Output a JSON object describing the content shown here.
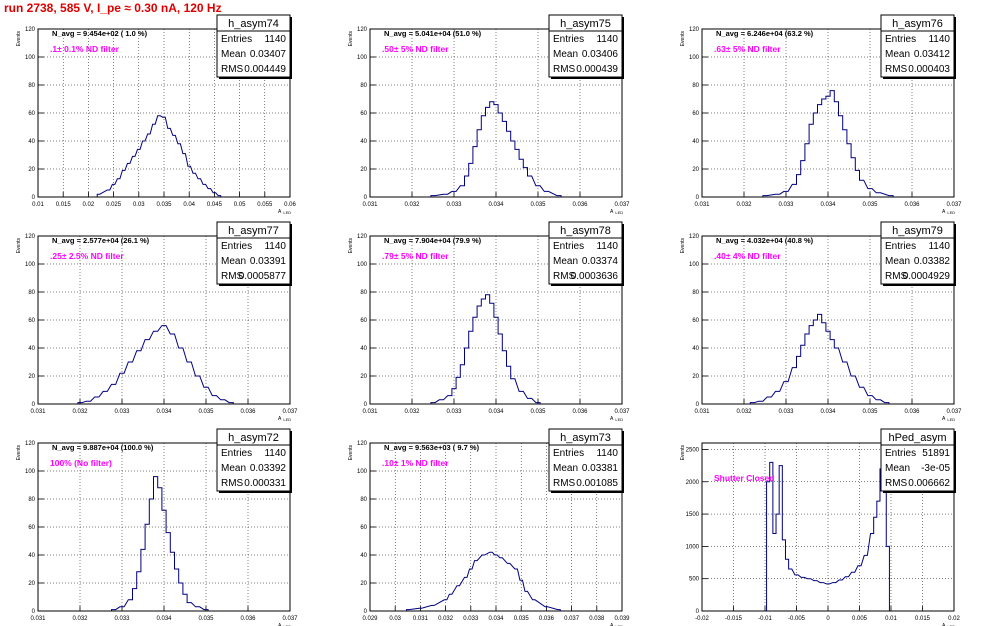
{
  "header": {
    "title": "run 2738,   585 V, I_pe ≈ 0.30 nA, 120 Hz"
  },
  "axes": {
    "y_label": "Events",
    "x_label": "A",
    "x_sub": "LED"
  },
  "colors": {
    "histogram": "#000080",
    "title": "#e00000",
    "filter_text": "#ff00ff"
  },
  "chart_data": [
    {
      "type": "bar",
      "name": "h_asym74",
      "n_avg": "N_avg = 9.454e+02 ( 1.0 %)",
      "filter": ".1± 0.1% ND filter",
      "stats": {
        "entries_label": "Entries",
        "entries": "1140",
        "mean_label": "Mean",
        "mean": "0.03407",
        "rms_label": "RMS",
        "rms": "0.004449"
      },
      "xlim": [
        0.01,
        0.06
      ],
      "ylim": [
        0,
        120
      ],
      "xticks": [
        "0.01",
        "0.015",
        "0.02",
        "0.025",
        "0.03",
        "0.035",
        "0.04",
        "0.045",
        "0.05",
        "0.055",
        "0.06"
      ],
      "yticks": [
        "0",
        "20",
        "40",
        "60",
        "80",
        "100",
        "120"
      ],
      "x": [
        0.022,
        0.024,
        0.025,
        0.026,
        0.027,
        0.028,
        0.029,
        0.03,
        0.031,
        0.032,
        0.033,
        0.034,
        0.035,
        0.036,
        0.037,
        0.038,
        0.039,
        0.04,
        0.041,
        0.042,
        0.043,
        0.044,
        0.045,
        0.046
      ],
      "values": [
        2,
        5,
        9,
        13,
        19,
        24,
        29,
        34,
        40,
        45,
        52,
        58,
        57,
        49,
        44,
        38,
        31,
        22,
        17,
        13,
        9,
        6,
        3,
        1
      ]
    },
    {
      "type": "bar",
      "name": "h_asym75",
      "n_avg": "N_avg = 5.041e+04 (51.0 %)",
      "filter": ".50± 5% ND filter",
      "stats": {
        "entries_label": "Entries",
        "entries": "1140",
        "mean_label": "Mean",
        "mean": "0.03406",
        "rms_label": "RMS",
        "rms": "0.000439"
      },
      "xlim": [
        0.031,
        0.037
      ],
      "ylim": [
        0,
        120
      ],
      "xticks": [
        "0.031",
        "0.032",
        "0.033",
        "0.034",
        "0.035",
        "0.036",
        "0.037"
      ],
      "yticks": [
        "0",
        "20",
        "40",
        "60",
        "80",
        "100",
        "120"
      ],
      "x": [
        0.0325,
        0.0328,
        0.033,
        0.0332,
        0.0333,
        0.0334,
        0.0335,
        0.0336,
        0.0337,
        0.0338,
        0.0339,
        0.034,
        0.0341,
        0.0342,
        0.0343,
        0.0344,
        0.0345,
        0.0346,
        0.0347,
        0.0348,
        0.035,
        0.0352,
        0.0355
      ],
      "values": [
        1,
        2,
        4,
        8,
        15,
        24,
        36,
        48,
        58,
        64,
        68,
        66,
        60,
        54,
        47,
        40,
        34,
        27,
        21,
        15,
        8,
        4,
        1
      ]
    },
    {
      "type": "bar",
      "name": "h_asym76",
      "n_avg": "N_avg = 6.246e+04 (63.2 %)",
      "filter": ".63± 5% ND filter",
      "stats": {
        "entries_label": "Entries",
        "entries": "1140",
        "mean_label": "Mean",
        "mean": "0.03412",
        "rms_label": "RMS",
        "rms": "0.000403"
      },
      "xlim": [
        0.031,
        0.037
      ],
      "ylim": [
        0,
        120
      ],
      "xticks": [
        "0.031",
        "0.032",
        "0.033",
        "0.034",
        "0.035",
        "0.036",
        "0.037"
      ],
      "yticks": [
        "0",
        "20",
        "40",
        "60",
        "80",
        "100",
        "120"
      ],
      "x": [
        0.0325,
        0.0328,
        0.033,
        0.0332,
        0.0333,
        0.0334,
        0.0335,
        0.0336,
        0.0337,
        0.0338,
        0.0339,
        0.034,
        0.0341,
        0.0342,
        0.0343,
        0.0344,
        0.0345,
        0.0346,
        0.0347,
        0.0348,
        0.035,
        0.0352,
        0.0355
      ],
      "values": [
        1,
        2,
        4,
        9,
        16,
        26,
        38,
        52,
        60,
        66,
        70,
        72,
        76,
        68,
        58,
        48,
        38,
        28,
        19,
        12,
        6,
        3,
        1
      ]
    },
    {
      "type": "bar",
      "name": "h_asym77",
      "n_avg": "N_avg = 2.577e+04 (26.1 %)",
      "filter": ".25± 2.5% ND filter",
      "stats": {
        "entries_label": "Entries",
        "entries": "1140",
        "mean_label": "Mean",
        "mean": "0.03391",
        "rms_label": "RMS",
        "rms": "0.0005877"
      },
      "xlim": [
        0.031,
        0.037
      ],
      "ylim": [
        0,
        120
      ],
      "xticks": [
        "0.031",
        "0.032",
        "0.033",
        "0.034",
        "0.035",
        "0.036",
        "0.037"
      ],
      "yticks": [
        "0",
        "20",
        "40",
        "60",
        "80",
        "100",
        "120"
      ],
      "x": [
        0.032,
        0.0322,
        0.0324,
        0.0326,
        0.0328,
        0.033,
        0.0332,
        0.0334,
        0.0336,
        0.0338,
        0.034,
        0.0342,
        0.0344,
        0.0346,
        0.0348,
        0.035,
        0.0352,
        0.0354,
        0.0356
      ],
      "values": [
        1,
        2,
        5,
        9,
        14,
        22,
        30,
        38,
        46,
        52,
        56,
        50,
        40,
        30,
        20,
        12,
        6,
        3,
        1
      ]
    },
    {
      "type": "bar",
      "name": "h_asym78",
      "n_avg": "N_avg = 7.904e+04 (79.9 %)",
      "filter": ".79± 5% ND filter",
      "stats": {
        "entries_label": "Entries",
        "entries": "1140",
        "mean_label": "Mean",
        "mean": "0.03374",
        "rms_label": "RMS",
        "rms": "0.0003636"
      },
      "xlim": [
        0.031,
        0.037
      ],
      "ylim": [
        0,
        120
      ],
      "xticks": [
        "0.031",
        "0.032",
        "0.033",
        "0.034",
        "0.035",
        "0.036",
        "0.037"
      ],
      "yticks": [
        "0",
        "20",
        "40",
        "60",
        "80",
        "100",
        "120"
      ],
      "x": [
        0.0325,
        0.0327,
        0.0329,
        0.033,
        0.0331,
        0.0332,
        0.0333,
        0.0334,
        0.0335,
        0.0336,
        0.0337,
        0.0338,
        0.0339,
        0.034,
        0.0341,
        0.0342,
        0.0343,
        0.0344,
        0.0346,
        0.0348,
        0.035
      ],
      "values": [
        1,
        3,
        6,
        11,
        19,
        28,
        40,
        52,
        62,
        70,
        75,
        78,
        72,
        62,
        50,
        38,
        27,
        18,
        9,
        4,
        1
      ]
    },
    {
      "type": "bar",
      "name": "h_asym79",
      "n_avg": "N_avg = 4.032e+04 (40.8 %)",
      "filter": ".40± 4% ND filter",
      "stats": {
        "entries_label": "Entries",
        "entries": "1140",
        "mean_label": "Mean",
        "mean": "0.03382",
        "rms_label": "RMS",
        "rms": "0.0004929"
      },
      "xlim": [
        0.031,
        0.037
      ],
      "ylim": [
        0,
        120
      ],
      "xticks": [
        "0.031",
        "0.032",
        "0.033",
        "0.034",
        "0.035",
        "0.036",
        "0.037"
      ],
      "yticks": [
        "0",
        "20",
        "40",
        "60",
        "80",
        "100",
        "120"
      ],
      "x": [
        0.0322,
        0.0324,
        0.0326,
        0.0328,
        0.033,
        0.0332,
        0.0333,
        0.0334,
        0.0335,
        0.0336,
        0.0337,
        0.0338,
        0.0339,
        0.034,
        0.0341,
        0.0342,
        0.0344,
        0.0346,
        0.0348,
        0.035,
        0.0352,
        0.0354
      ],
      "values": [
        1,
        2,
        5,
        9,
        16,
        26,
        34,
        42,
        50,
        56,
        60,
        64,
        58,
        52,
        46,
        40,
        30,
        20,
        12,
        6,
        3,
        1
      ]
    },
    {
      "type": "bar",
      "name": "h_asym72",
      "n_avg": "N_avg = 9.887e+04 (100.0 %)",
      "filter": "100% (No filter)",
      "stats": {
        "entries_label": "Entries",
        "entries": "1140",
        "mean_label": "Mean",
        "mean": "0.03392",
        "rms_label": "RMS",
        "rms": "0.000331"
      },
      "xlim": [
        0.031,
        0.037
      ],
      "ylim": [
        0,
        120
      ],
      "xticks": [
        "0.031",
        "0.032",
        "0.033",
        "0.034",
        "0.035",
        "0.036",
        "0.037"
      ],
      "yticks": [
        "0",
        "20",
        "40",
        "60",
        "80",
        "100",
        "120"
      ],
      "x": [
        0.0328,
        0.033,
        0.0332,
        0.0333,
        0.0334,
        0.0335,
        0.0336,
        0.0337,
        0.0338,
        0.0339,
        0.034,
        0.0341,
        0.0342,
        0.0343,
        0.0344,
        0.0345,
        0.0346,
        0.0348,
        0.035
      ],
      "values": [
        1,
        3,
        8,
        16,
        28,
        44,
        62,
        80,
        96,
        88,
        72,
        56,
        42,
        30,
        20,
        12,
        6,
        3,
        1
      ]
    },
    {
      "type": "bar",
      "name": "h_asym73",
      "n_avg": "N_avg = 9.563e+03 ( 9.7 %)",
      "filter": ".10± 1% ND filter",
      "stats": {
        "entries_label": "Entries",
        "entries": "1140",
        "mean_label": "Mean",
        "mean": "0.03381",
        "rms_label": "RMS",
        "rms": "0.001085"
      },
      "xlim": [
        0.029,
        0.039
      ],
      "ylim": [
        0,
        120
      ],
      "xticks": [
        "0.029",
        "0.03",
        "0.031",
        "0.032",
        "0.033",
        "0.034",
        "0.035",
        "0.036",
        "0.037",
        "0.038",
        "0.039"
      ],
      "yticks": [
        "0",
        "20",
        "40",
        "60",
        "80",
        "100",
        "120"
      ],
      "x": [
        0.0305,
        0.031,
        0.0315,
        0.032,
        0.0322,
        0.0325,
        0.0328,
        0.033,
        0.0332,
        0.0335,
        0.0338,
        0.034,
        0.0342,
        0.0345,
        0.0348,
        0.035,
        0.0352,
        0.0355,
        0.036,
        0.0365
      ],
      "values": [
        1,
        2,
        4,
        8,
        12,
        18,
        24,
        30,
        36,
        40,
        42,
        40,
        38,
        34,
        30,
        22,
        14,
        8,
        3,
        1
      ]
    },
    {
      "type": "bar",
      "name": "hPed_asym",
      "n_avg": "",
      "filter": "Shutter Closed",
      "stats": {
        "entries_label": "Entries",
        "entries": "51891",
        "mean_label": "Mean",
        "mean": "-3e-05",
        "rms_label": "RMS",
        "rms": "0.006662"
      },
      "xlim": [
        -0.02,
        0.02
      ],
      "ylim": [
        0,
        2600
      ],
      "xticks": [
        "-0.02",
        "-0.015",
        "-0.01",
        "-0.005",
        "0",
        "0.005",
        "0.01",
        "0.015",
        "0.02"
      ],
      "yticks": [
        "0",
        "500",
        "1000",
        "1500",
        "2000",
        "2500"
      ],
      "x": [
        -0.0095,
        -0.009,
        -0.0085,
        -0.008,
        -0.0075,
        -0.007,
        -0.0065,
        -0.006,
        -0.005,
        -0.004,
        -0.003,
        -0.002,
        -0.001,
        0,
        0.001,
        0.002,
        0.003,
        0.004,
        0.005,
        0.006,
        0.007,
        0.0075,
        0.008,
        0.0085,
        0.009,
        0.0095
      ],
      "values": [
        2000,
        2300,
        1200,
        1500,
        2250,
        1100,
        800,
        650,
        560,
        520,
        500,
        470,
        440,
        420,
        440,
        480,
        530,
        600,
        700,
        860,
        1200,
        1450,
        1700,
        2200,
        2500,
        1000
      ]
    }
  ]
}
